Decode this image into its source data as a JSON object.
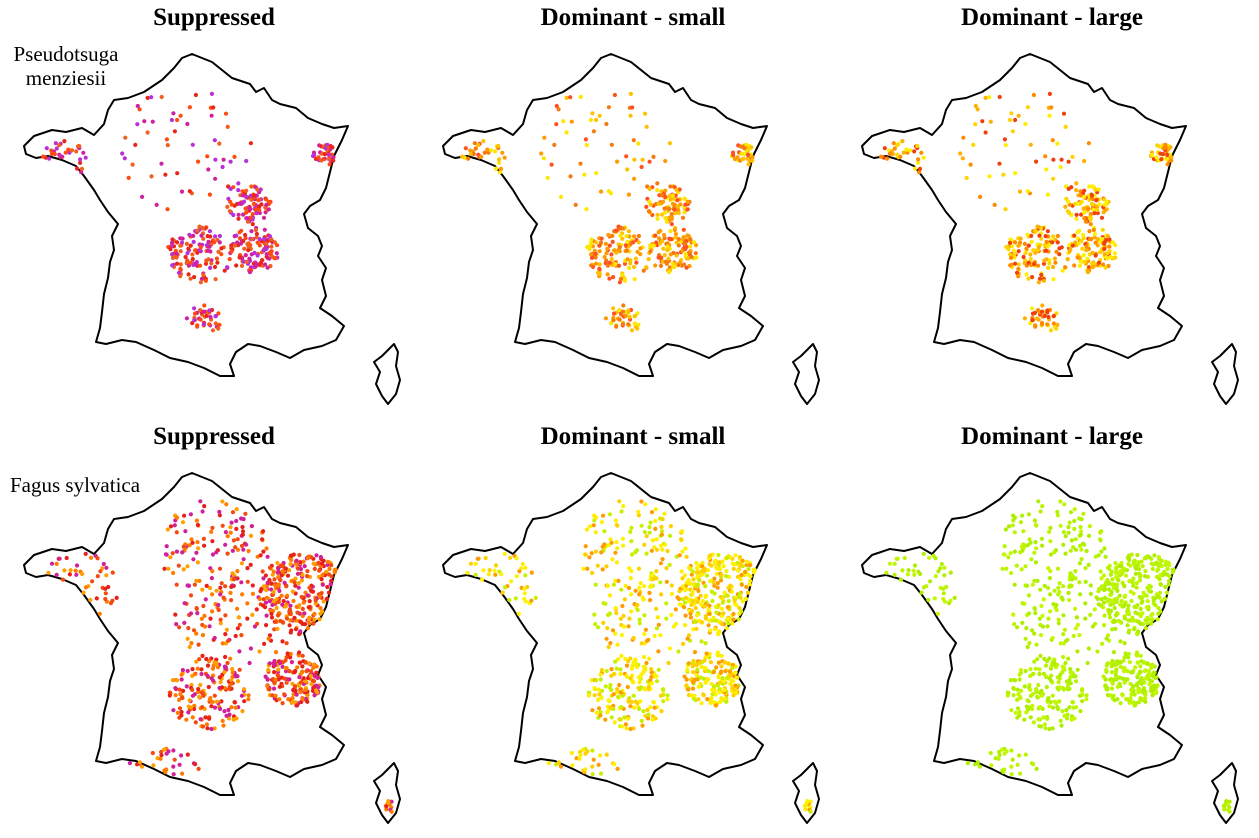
{
  "figure": {
    "panels": [
      {
        "title": "Suppressed",
        "species": "Pseudotsuga menziesii",
        "row": 0,
        "col": 0,
        "palette": [
          "#e8261a",
          "#f06020",
          "#d022a0",
          "#b830d8",
          "#ff4a10"
        ],
        "density": 0.55,
        "region_mix": "douglas"
      },
      {
        "title": "Dominant - small",
        "species": "",
        "row": 0,
        "col": 1,
        "palette": [
          "#ffe600",
          "#ffc000",
          "#ff9a00",
          "#f57a10",
          "#ff5020"
        ],
        "density": 0.55,
        "region_mix": "douglas"
      },
      {
        "title": "Dominant - large",
        "species": "",
        "row": 0,
        "col": 2,
        "palette": [
          "#ffee00",
          "#ffd400",
          "#ffb000",
          "#ff8a00",
          "#f04010"
        ],
        "density": 0.55,
        "region_mix": "douglas"
      },
      {
        "title": "Suppressed",
        "species": "Fagus sylvatica",
        "row": 1,
        "col": 0,
        "palette": [
          "#ff7a00",
          "#f24a10",
          "#e8201a",
          "#ffa000",
          "#d0209a"
        ],
        "density": 1.0,
        "region_mix": "beech"
      },
      {
        "title": "Dominant - small",
        "species": "",
        "row": 1,
        "col": 1,
        "palette": [
          "#ffee00",
          "#fff200",
          "#c6f000",
          "#ffd000",
          "#ff9a00"
        ],
        "density": 1.0,
        "region_mix": "beech"
      },
      {
        "title": "Dominant - large",
        "species": "",
        "row": 1,
        "col": 2,
        "palette": [
          "#b8f400",
          "#aef000",
          "#c4f700",
          "#b0ee00",
          "#bdf500"
        ],
        "density": 1.0,
        "region_mix": "beech"
      }
    ]
  }
}
